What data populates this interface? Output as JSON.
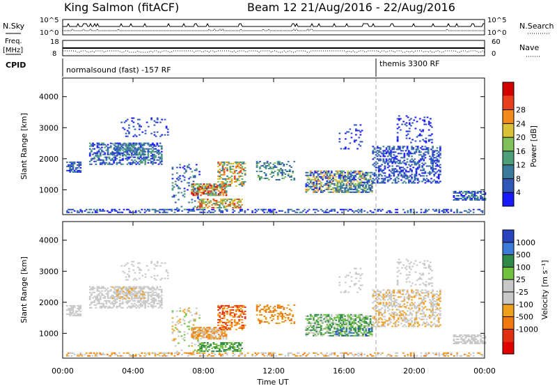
{
  "header": {
    "title": "King Salmon (fitACF)",
    "subtitle": "Beam 12  21/Aug/2016 - 22/Aug/2016"
  },
  "params": {
    "nsky_label": "N.Sky",
    "nsearch_label": "N.Search",
    "freq_label_1": "Freq.",
    "freq_label_2": "[MHz]",
    "nave_label": "Nave",
    "cpid_label": "CPID",
    "left_ticks_noise": [
      "10^5",
      "10^0"
    ],
    "right_ticks_noise": [
      "10^5",
      "10^0"
    ],
    "left_ticks_freq": [
      "18",
      "8"
    ],
    "right_ticks_nave": [
      "60",
      "0"
    ],
    "cpid_segments": [
      {
        "label": "normalsound (fast) -157 RF",
        "start_hour": 0,
        "end_hour": 18
      },
      {
        "label": "themis 3300 RF",
        "start_hour": 18,
        "end_hour": 24
      }
    ]
  },
  "colors": {
    "power_scale": [
      "#1a1aff",
      "#2e57b8",
      "#3b7a9a",
      "#4f9e7a",
      "#7fc05a",
      "#d9c238",
      "#f28a1e",
      "#e8401c",
      "#d40000"
    ],
    "velocity_scale": [
      "#2a44c0",
      "#3c7ad8",
      "#2f8a4a",
      "#72c040",
      "#c8c8c8",
      "#c8c8c8",
      "#f0a020",
      "#f07a10",
      "#e03010",
      "#e00000"
    ]
  },
  "chart_data": [
    {
      "type": "heatmap",
      "name": "power",
      "xlabel": "",
      "ylabel": "Slant Range [km]",
      "xlim_hours": [
        0,
        24
      ],
      "ylim": [
        200,
        4600
      ],
      "y_ticks": [
        1000,
        2000,
        3000,
        4000
      ],
      "colorbar_label": "Power [dB]",
      "colorbar_ticks": [
        "4",
        "8",
        "12",
        "16",
        "20",
        "24",
        "28"
      ],
      "grid": false
    },
    {
      "type": "heatmap",
      "name": "velocity",
      "xlabel": "Time UT",
      "ylabel": "Slant Range [km]",
      "xlim_hours": [
        0,
        24
      ],
      "ylim": [
        200,
        4600
      ],
      "y_ticks": [
        1000,
        2000,
        3000,
        4000
      ],
      "x_ticks": [
        "00:00",
        "04:00",
        "08:00",
        "12:00",
        "16:00",
        "20:00",
        "00:00"
      ],
      "colorbar_label": "Velocity [m s⁻¹]",
      "colorbar_ticks": [
        "1000",
        "500",
        "100",
        "25",
        "-25",
        "-100",
        "-500",
        "-1000"
      ],
      "grid": false
    }
  ],
  "xaxis": {
    "ticks": [
      "00:00",
      "04:00",
      "08:00",
      "12:00",
      "16:00",
      "20:00",
      "00:00"
    ],
    "label": "Time UT"
  }
}
